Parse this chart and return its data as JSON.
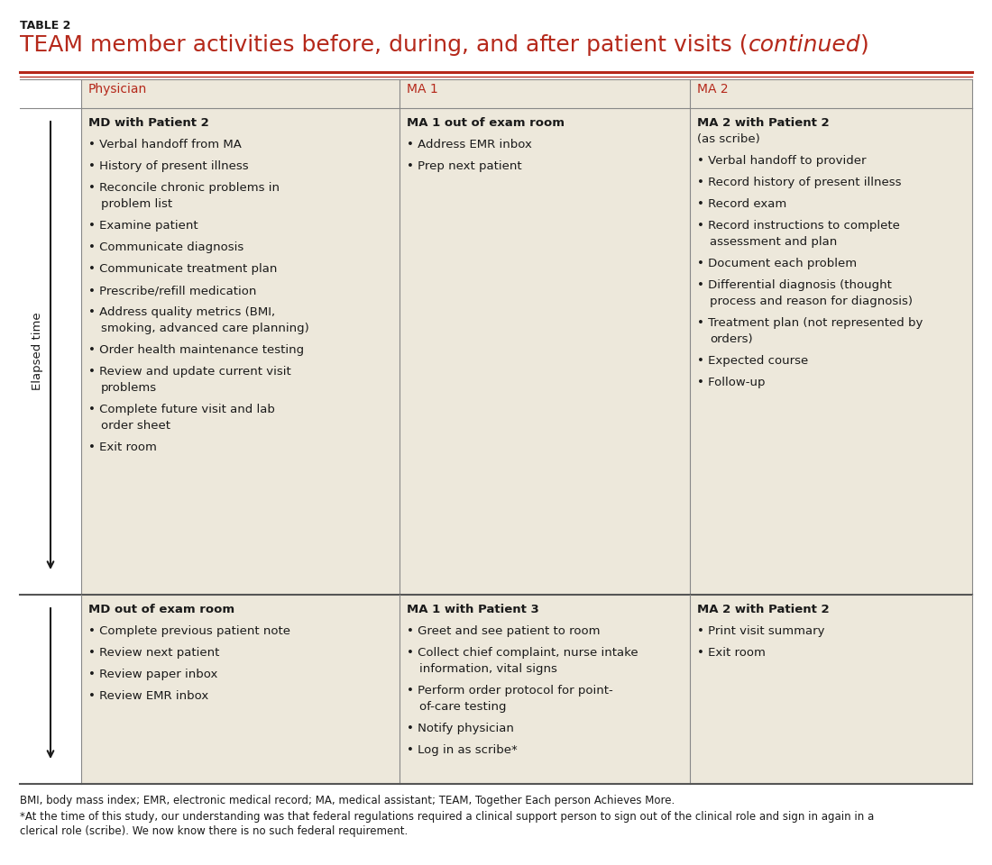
{
  "title_label": "TABLE 2",
  "title_main": "TEAM member activities before, during, and after patient visits (",
  "title_italic": "continued",
  "title_end": ")",
  "bg_color": "#ede8db",
  "white_color": "#ffffff",
  "header_red": "#b5281a",
  "text_color": "#1a1a1a",
  "line_color": "#888888",
  "col_headers": [
    "Physician",
    "MA 1",
    "MA 2"
  ],
  "row1_col1_header": "MD with Patient 2",
  "row1_col1_items": [
    "Verbal handoff from MA",
    "History of present illness",
    "Reconcile chronic problems in\n    problem list",
    "Examine patient",
    "Communicate diagnosis",
    "Communicate treatment plan",
    "Prescribe/refill medication",
    "Address quality metrics (BMI,\n    smoking, advanced care planning)",
    "Order health maintenance testing",
    "Review and update current visit\n    problems",
    "Complete future visit and lab\n    order sheet",
    "Exit room"
  ],
  "row1_col2_header": "MA 1 out of exam room",
  "row1_col2_items": [
    "Address EMR inbox",
    "Prep next patient"
  ],
  "row1_col3_header_line1": "MA 2 with Patient 2",
  "row1_col3_header_line2": "(as scribe)",
  "row1_col3_items": [
    "Verbal handoff to provider",
    "Record history of present illness",
    "Record exam",
    "Record instructions to complete\n    assessment and plan",
    "Document each problem",
    "Differential diagnosis (thought\n    process and reason for diagnosis)",
    "Treatment plan (not represented by\n    orders)",
    "Expected course",
    "Follow-up"
  ],
  "row2_col1_header": "MD out of exam room",
  "row2_col1_items": [
    "Complete previous patient note",
    "Review next patient",
    "Review paper inbox",
    "Review EMR inbox"
  ],
  "row2_col2_header": "MA 1 with Patient 3",
  "row2_col2_items": [
    "Greet and see patient to room",
    "Collect chief complaint, nurse intake\n    information, vital signs",
    "Perform order protocol for point-\n    of-care testing",
    "Notify physician",
    "Log in as scribe*"
  ],
  "row2_col3_header": "MA 2 with Patient 2",
  "row2_col3_items": [
    "Print visit summary",
    "Exit room"
  ],
  "footnote1": "BMI, body mass index; EMR, electronic medical record; MA, medical assistant; TEAM, Together Each person Achieves More.",
  "footnote2": "*At the time of this study, our understanding was that federal regulations required a clinical support person to sign out of the clinical role and sign in again in a",
  "footnote3": "clerical role (scribe). We now know there is no such federal requirement."
}
